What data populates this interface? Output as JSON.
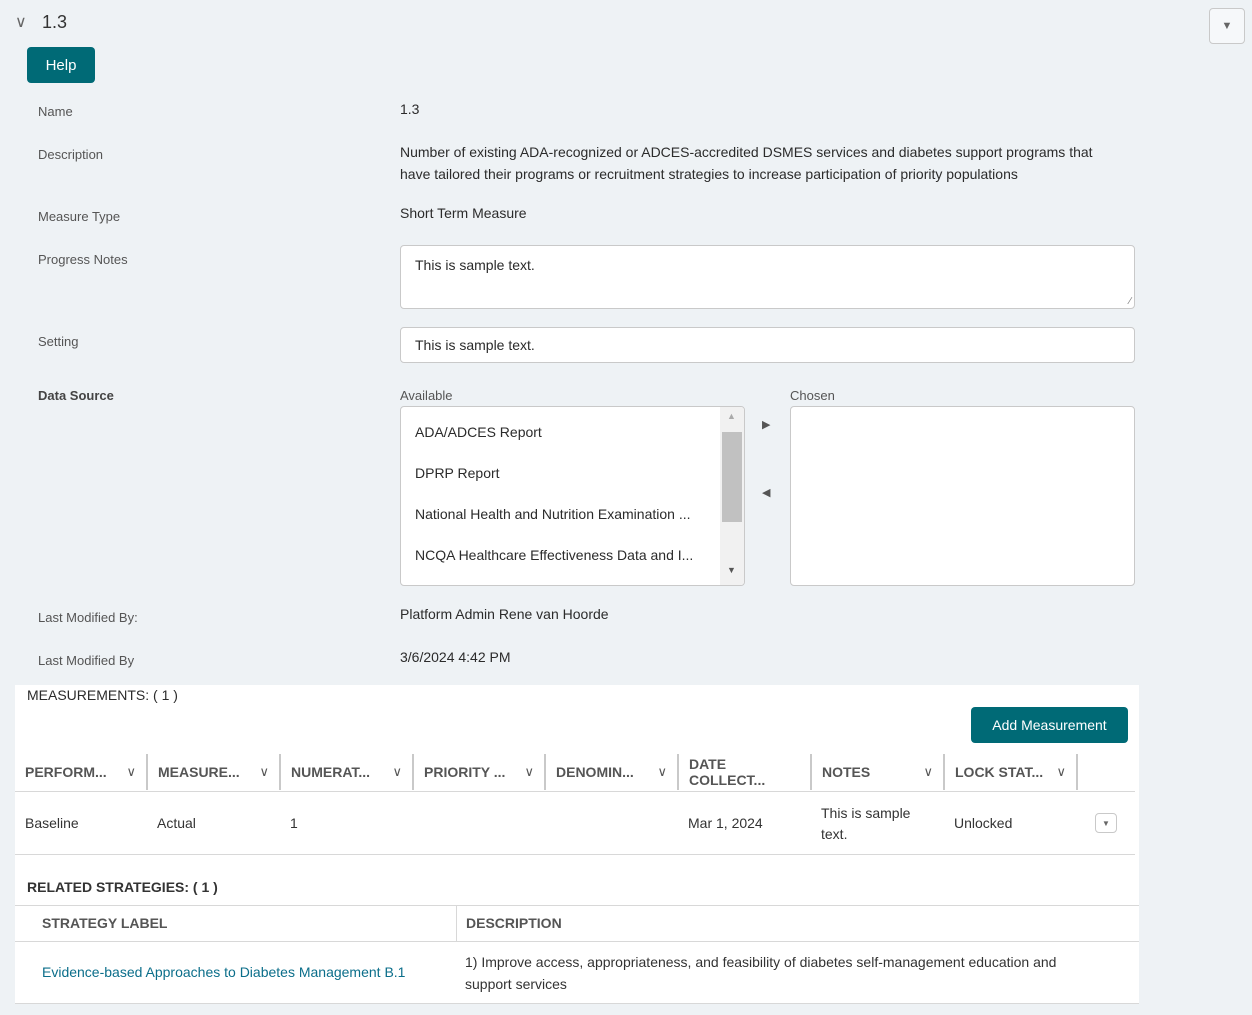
{
  "header": {
    "title": "1.3",
    "help_label": "Help"
  },
  "fields": {
    "name_label": "Name",
    "name_value": "1.3",
    "description_label": "Description",
    "description_value": "Number of existing ADA-recognized or ADCES-accredited DSMES services and diabetes support programs that have tailored their programs or recruitment strategies to increase participation of priority populations",
    "measure_type_label": "Measure Type",
    "measure_type_value": "Short Term Measure",
    "progress_notes_label": "Progress Notes",
    "progress_notes_value": "This is sample text.",
    "setting_label": "Setting",
    "setting_value": "This is sample text.",
    "data_source_label": "Data Source",
    "available_label": "Available",
    "chosen_label": "Chosen",
    "available_items": [
      "ADA/ADCES Report",
      "DPRP Report",
      "National Health and Nutrition Examination ...",
      "NCQA Healthcare Effectiveness Data and I..."
    ],
    "last_modified_by_label": "Last Modified By:",
    "last_modified_by_value": "Platform Admin Rene van Hoorde",
    "last_modified_date_label": "Last Modified By",
    "last_modified_date_value": "3/6/2024 4:42 PM"
  },
  "measurements": {
    "title": "MEASUREMENTS: ( 1 )",
    "add_label": "Add Measurement",
    "columns": [
      "PERFORM...",
      "MEASURE...",
      "NUMERAT...",
      "PRIORITY ...",
      "DENOMIN...",
      "DATE COLLECT...",
      "NOTES",
      "LOCK STAT..."
    ],
    "rows": [
      [
        "Baseline",
        "Actual",
        "1",
        "",
        "",
        "Mar 1, 2024",
        "This is sample text.",
        "Unlocked"
      ]
    ]
  },
  "related": {
    "title": "RELATED STRATEGIES: ( 1 )",
    "columns": [
      "STRATEGY LABEL",
      "DESCRIPTION"
    ],
    "rows": [
      [
        "Evidence-based Approaches to Diabetes Management B.1",
        "1) Improve access, appropriateness, and feasibility of diabetes self-management education and support services"
      ]
    ]
  },
  "colors": {
    "accent": "#006a76",
    "link": "#0b6e8a",
    "background": "#eef2f5"
  }
}
